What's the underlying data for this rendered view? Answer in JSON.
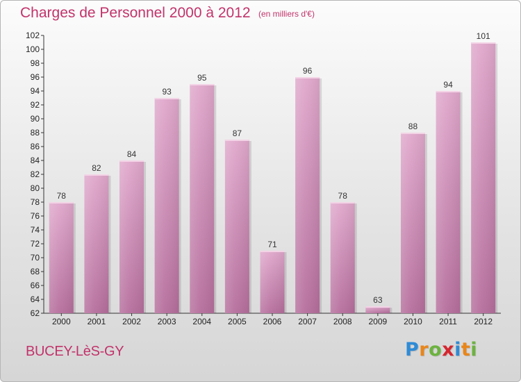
{
  "header": {
    "title": "Charges de Personnel 2000 à 2012",
    "subtitle": "(en milliers d'€)"
  },
  "footer": {
    "place": "BUCEY-LèS-GY",
    "logo_letters": [
      {
        "ch": "P",
        "color": "#2e8bd6"
      },
      {
        "ch": "r",
        "color": "#e8861a"
      },
      {
        "ch": "o",
        "color": "#6cb33f"
      },
      {
        "ch": "x",
        "color": "#d5262f"
      },
      {
        "ch": "i",
        "color": "#2e8bd6"
      },
      {
        "ch": "t",
        "color": "#e8861a"
      },
      {
        "ch": "i",
        "color": "#6cb33f"
      }
    ]
  },
  "colors": {
    "accent": "#c2336a",
    "bar_top": "#e0a8cc",
    "bar_bottom": "#b56e9c"
  },
  "chart_data": {
    "type": "bar",
    "categories": [
      "2000",
      "2001",
      "2002",
      "2003",
      "2004",
      "2005",
      "2006",
      "2007",
      "2008",
      "2009",
      "2010",
      "2011",
      "2012"
    ],
    "values": [
      78,
      82,
      84,
      93,
      95,
      87,
      71,
      96,
      78,
      63,
      88,
      94,
      101
    ],
    "ylim": [
      62,
      102
    ],
    "yticks": [
      62,
      64,
      66,
      68,
      70,
      72,
      74,
      76,
      78,
      80,
      82,
      84,
      86,
      88,
      90,
      92,
      94,
      96,
      98,
      100,
      102
    ],
    "grid": false,
    "legend": "none"
  }
}
